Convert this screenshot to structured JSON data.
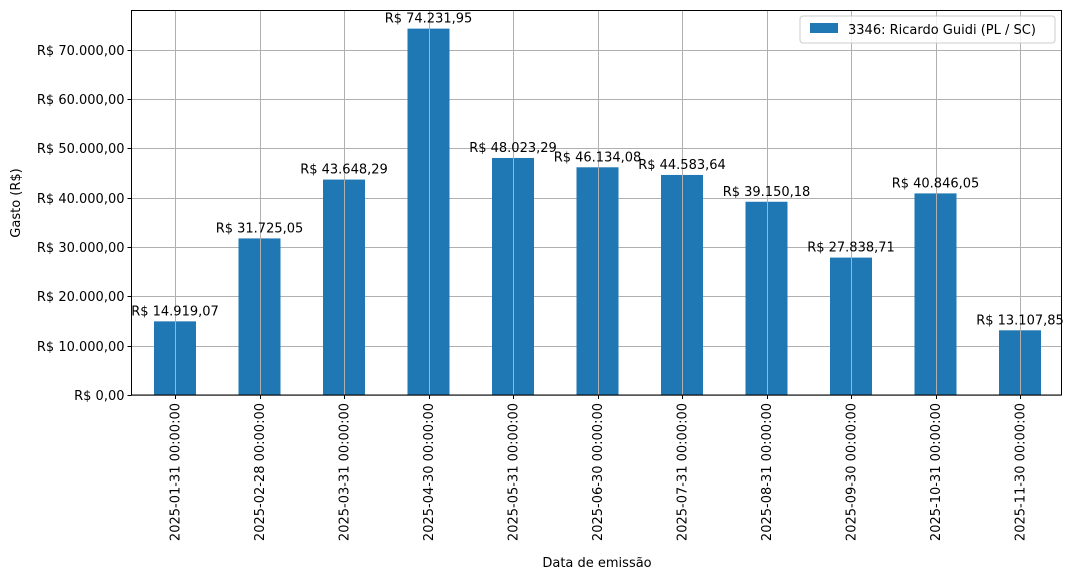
{
  "chart_data": {
    "type": "bar",
    "title": "",
    "xlabel": "Data de emissão",
    "ylabel": "Gasto (R$)",
    "ylim": [
      0,
      78000
    ],
    "grid": true,
    "legend_position": "upper right",
    "bar_color": "#1f77b4",
    "categories": [
      "2025-01-31 00:00:00",
      "2025-02-28 00:00:00",
      "2025-03-31 00:00:00",
      "2025-04-30 00:00:00",
      "2025-05-31 00:00:00",
      "2025-06-30 00:00:00",
      "2025-07-31 00:00:00",
      "2025-08-31 00:00:00",
      "2025-09-30 00:00:00",
      "2025-10-31 00:00:00",
      "2025-11-30 00:00:00"
    ],
    "series": [
      {
        "name": "3346: Ricardo Guidi (PL / SC)",
        "values": [
          14919.07,
          31725.05,
          43648.29,
          74231.95,
          48023.29,
          46134.08,
          44583.64,
          39150.18,
          27838.71,
          40846.05,
          13107.85
        ]
      }
    ],
    "data_labels": [
      "R$ 14.919,07",
      "R$ 31.725,05",
      "R$ 43.648,29",
      "R$ 74.231,95",
      "R$ 48.023,29",
      "R$ 46.134,08",
      "R$ 44.583,64",
      "R$ 39.150,18",
      "R$ 27.838,71",
      "R$ 40.846,05",
      "R$ 13.107,85"
    ],
    "yticks": [
      0,
      10000,
      20000,
      30000,
      40000,
      50000,
      60000,
      70000
    ],
    "ytick_labels": [
      "R$ 0,00",
      "R$ 10.000,00",
      "R$ 20.000,00",
      "R$ 30.000,00",
      "R$ 40.000,00",
      "R$ 50.000,00",
      "R$ 60.000,00",
      "R$ 70.000,00"
    ]
  }
}
